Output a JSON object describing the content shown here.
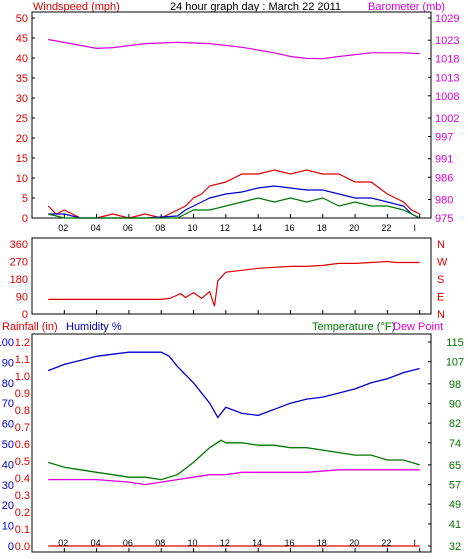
{
  "title": "24 hour graph day : March 22 2011",
  "colors": {
    "red": "#dd0000",
    "blue": "#0000cc",
    "green": "#007700",
    "magenta": "#dd00dd",
    "frame": "#000000",
    "grid": "#e6e6e6"
  },
  "chart_data": [
    {
      "type": "line",
      "panel": "wind",
      "left_label": "Windspeed (mph)",
      "right_label": "Barometer (mb)",
      "x_ticks": [
        "02",
        "04",
        "06",
        "08",
        "10",
        "12",
        "14",
        "16",
        "18",
        "20",
        "22",
        "l"
      ],
      "y_left_ticks": [
        0,
        5,
        10,
        15,
        20,
        25,
        30,
        35,
        40,
        45,
        50
      ],
      "y_left_range": [
        0,
        50
      ],
      "y_right_ticks": [
        975,
        980,
        986,
        991,
        997,
        1002,
        1008,
        1013,
        1018,
        1023,
        1029
      ],
      "y_right_range": [
        975,
        1029
      ],
      "series": [
        {
          "color": "#dd0000",
          "points": [
            [
              0,
              3
            ],
            [
              0.5,
              1
            ],
            [
              1,
              2
            ],
            [
              2,
              0
            ],
            [
              3,
              0
            ],
            [
              4,
              1
            ],
            [
              5,
              0
            ],
            [
              6,
              1
            ],
            [
              7,
              0
            ],
            [
              7.5,
              1
            ],
            [
              8,
              2
            ],
            [
              8.5,
              3
            ],
            [
              9,
              5
            ],
            [
              9.5,
              6
            ],
            [
              10,
              8
            ],
            [
              11,
              9
            ],
            [
              12,
              11
            ],
            [
              13,
              11
            ],
            [
              14,
              12
            ],
            [
              15,
              11
            ],
            [
              16,
              12
            ],
            [
              17,
              11
            ],
            [
              18,
              11
            ],
            [
              19,
              9
            ],
            [
              20,
              9
            ],
            [
              21,
              6
            ],
            [
              22,
              4
            ],
            [
              22.5,
              2
            ],
            [
              23,
              1
            ]
          ]
        },
        {
          "color": "#0000cc",
          "points": [
            [
              0,
              1
            ],
            [
              1,
              1
            ],
            [
              2,
              0
            ],
            [
              4,
              0
            ],
            [
              6,
              0
            ],
            [
              8,
              0.5
            ],
            [
              8.5,
              2
            ],
            [
              9,
              3
            ],
            [
              9.5,
              4
            ],
            [
              10,
              5
            ],
            [
              11,
              6
            ],
            [
              12,
              6.5
            ],
            [
              13,
              7.5
            ],
            [
              14,
              8
            ],
            [
              15,
              7.5
            ],
            [
              16,
              7
            ],
            [
              17,
              7
            ],
            [
              18,
              6
            ],
            [
              19,
              5
            ],
            [
              20,
              5
            ],
            [
              21,
              4
            ],
            [
              22,
              3
            ],
            [
              22.5,
              1
            ],
            [
              23,
              0
            ]
          ]
        },
        {
          "color": "#007700",
          "points": [
            [
              0,
              1
            ],
            [
              1,
              0
            ],
            [
              2,
              0
            ],
            [
              8,
              0
            ],
            [
              8.5,
              1
            ],
            [
              9,
              2
            ],
            [
              10,
              2
            ],
            [
              11,
              3
            ],
            [
              12,
              4
            ],
            [
              13,
              5
            ],
            [
              14,
              4
            ],
            [
              15,
              5
            ],
            [
              16,
              4
            ],
            [
              17,
              5
            ],
            [
              18,
              3
            ],
            [
              19,
              4
            ],
            [
              20,
              3
            ],
            [
              21,
              3
            ],
            [
              22,
              2
            ],
            [
              22.5,
              1
            ],
            [
              23,
              0
            ]
          ]
        },
        {
          "color": "#dd00dd",
          "points": [
            [
              0,
              1023.2
            ],
            [
              2,
              1021.6
            ],
            [
              3,
              1020.8
            ],
            [
              4,
              1021.0
            ],
            [
              6,
              1022.1
            ],
            [
              8,
              1022.4
            ],
            [
              10,
              1022.1
            ],
            [
              12,
              1021.1
            ],
            [
              14,
              1019.6
            ],
            [
              15,
              1018.6
            ],
            [
              16,
              1018.1
            ],
            [
              17,
              1018.0
            ],
            [
              18,
              1018.6
            ],
            [
              20,
              1019.6
            ],
            [
              22,
              1019.6
            ],
            [
              23,
              1019.4
            ]
          ]
        }
      ]
    },
    {
      "type": "line",
      "panel": "direction",
      "y_left_ticks": [
        0,
        90,
        180,
        270,
        360
      ],
      "y_left_range": [
        0,
        360
      ],
      "y_right_labels": [
        "N",
        "W",
        "S",
        "E",
        "N"
      ],
      "series": [
        {
          "color": "#dd0000",
          "points": [
            [
              0,
              75
            ],
            [
              7,
              75
            ],
            [
              7.5,
              80
            ],
            [
              7.8,
              90
            ],
            [
              8.2,
              105
            ],
            [
              8.5,
              85
            ],
            [
              9,
              110
            ],
            [
              9.5,
              80
            ],
            [
              10,
              115
            ],
            [
              10.3,
              40
            ],
            [
              10.5,
              170
            ],
            [
              11,
              215
            ],
            [
              12,
              225
            ],
            [
              13,
              235
            ],
            [
              14,
              240
            ],
            [
              15,
              245
            ],
            [
              16,
              245
            ],
            [
              17,
              250
            ],
            [
              18,
              260
            ],
            [
              19,
              260
            ],
            [
              20,
              265
            ],
            [
              21,
              270
            ],
            [
              21.5,
              265
            ],
            [
              23,
              265
            ]
          ]
        }
      ]
    },
    {
      "type": "line",
      "panel": "weather",
      "left_label_rain": "Rainfall (in)",
      "left_label_hum": "Humidity %",
      "right_label_temp": "Temperature (°F)",
      "right_label_dew": "Dew Point",
      "y_left_ticks": [
        0,
        10,
        20,
        30,
        40,
        50,
        60,
        70,
        80,
        90,
        100
      ],
      "y_rain_ticks": [
        0.0,
        0.1,
        0.2,
        0.3,
        0.4,
        0.5,
        0.6,
        0.7,
        0.8,
        0.9,
        1.0,
        1.1,
        1.2
      ],
      "y_right_ticks": [
        32,
        41,
        49,
        57,
        65,
        74,
        82,
        90,
        98,
        107,
        115
      ],
      "y_right_range": [
        32,
        115
      ],
      "series": [
        {
          "color": "#0000cc",
          "axis": "left",
          "points": [
            [
              0,
              86
            ],
            [
              1,
              89
            ],
            [
              2,
              91
            ],
            [
              3,
              93
            ],
            [
              4,
              94
            ],
            [
              5,
              95
            ],
            [
              6,
              95
            ],
            [
              7,
              95
            ],
            [
              7.5,
              93
            ],
            [
              8,
              88
            ],
            [
              9,
              80
            ],
            [
              10,
              70
            ],
            [
              10.5,
              63
            ],
            [
              11,
              68
            ],
            [
              12,
              65
            ],
            [
              13,
              64
            ],
            [
              14,
              67
            ],
            [
              15,
              70
            ],
            [
              16,
              72
            ],
            [
              17,
              73
            ],
            [
              18,
              75
            ],
            [
              19,
              77
            ],
            [
              20,
              80
            ],
            [
              21,
              82
            ],
            [
              22,
              85
            ],
            [
              23,
              87
            ]
          ]
        },
        {
          "color": "#007700",
          "axis": "right",
          "points": [
            [
              0,
              66
            ],
            [
              1,
              64
            ],
            [
              2,
              63
            ],
            [
              3,
              62
            ],
            [
              4,
              61
            ],
            [
              5,
              60
            ],
            [
              6,
              60
            ],
            [
              7,
              59
            ],
            [
              8,
              61
            ],
            [
              9,
              66
            ],
            [
              10,
              72
            ],
            [
              10.7,
              75
            ],
            [
              11,
              74
            ],
            [
              12,
              74
            ],
            [
              13,
              73
            ],
            [
              14,
              73
            ],
            [
              15,
              72
            ],
            [
              16,
              72
            ],
            [
              17,
              71
            ],
            [
              18,
              70
            ],
            [
              19,
              69
            ],
            [
              20,
              69
            ],
            [
              21,
              67
            ],
            [
              22,
              67
            ],
            [
              23,
              65
            ]
          ]
        },
        {
          "color": "#dd00dd",
          "axis": "right",
          "points": [
            [
              0,
              59
            ],
            [
              3,
              59
            ],
            [
              5,
              58
            ],
            [
              6,
              57
            ],
            [
              7,
              58
            ],
            [
              8,
              59
            ],
            [
              9,
              60
            ],
            [
              10,
              61
            ],
            [
              11,
              61
            ],
            [
              12,
              62
            ],
            [
              14,
              62
            ],
            [
              16,
              62
            ],
            [
              18,
              63
            ],
            [
              20,
              63
            ],
            [
              22,
              63
            ],
            [
              23,
              63
            ]
          ]
        },
        {
          "color": "#dd0000",
          "axis": "rain",
          "points": [
            [
              0,
              0.0
            ],
            [
              23,
              0.0
            ]
          ]
        }
      ]
    }
  ]
}
